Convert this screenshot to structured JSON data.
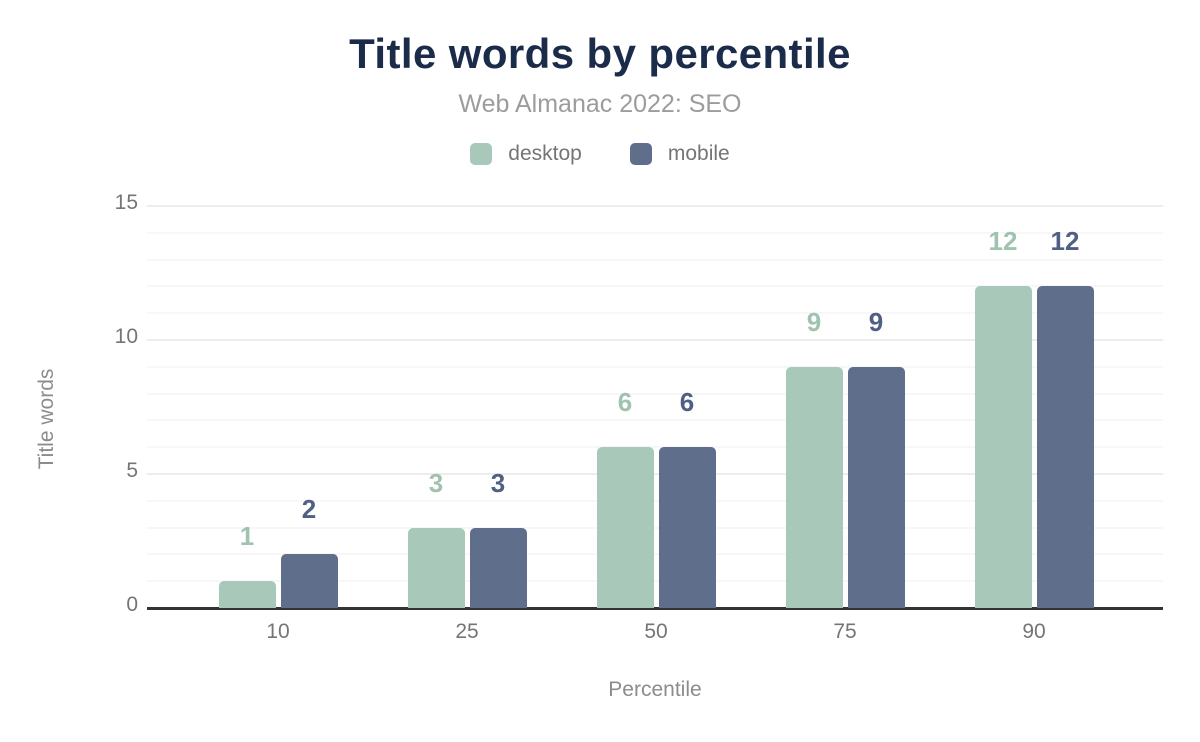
{
  "chart_data": {
    "type": "bar",
    "title": "Title words by percentile",
    "subtitle": "Web Almanac 2022: SEO",
    "xlabel": "Percentile",
    "ylabel": "Title words",
    "categories": [
      "10",
      "25",
      "50",
      "75",
      "90"
    ],
    "series": [
      {
        "name": "desktop",
        "values": [
          1,
          3,
          6,
          9,
          12
        ],
        "color": "#a8c9b9",
        "label_color": "#9fc3af"
      },
      {
        "name": "mobile",
        "values": [
          2,
          3,
          6,
          9,
          12
        ],
        "color": "#5e6e8b",
        "label_color": "#4f6084"
      }
    ],
    "ylim": [
      0,
      15
    ],
    "yticks": [
      0,
      5,
      10,
      15
    ],
    "grid": {
      "horizontal": true,
      "minor_every": 1,
      "major_every": 5
    },
    "legend_position": "top",
    "bar_value_labels": true
  },
  "style": {
    "title_color": "#1b2b4a",
    "subtitle_color": "#9c9c9c",
    "axis_title_color": "#8c8c8c",
    "tick_color": "#757575",
    "legend_text_color": "#757575",
    "axis_line_color": "#333333",
    "grid_major_color": "#ededed",
    "grid_minor_color": "#f7f7f7",
    "background": "#ffffff"
  }
}
